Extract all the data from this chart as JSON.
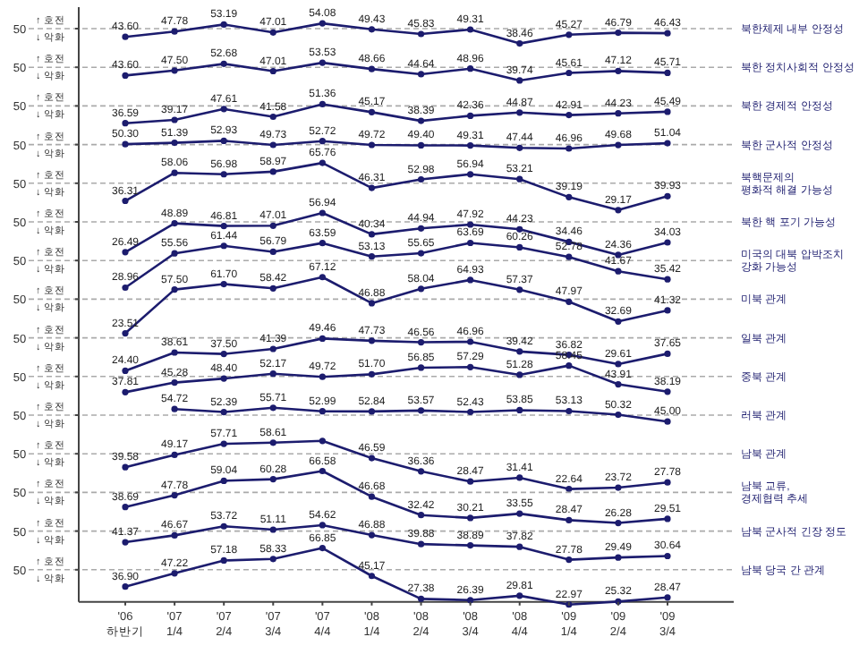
{
  "chart_data": [
    {
      "type": "line",
      "series": [
        {
          "name": "북한체제 내부 안정성",
          "color": "#1c1c6e",
          "values": [
            43.6,
            47.78,
            53.19,
            47.01,
            54.08,
            49.43,
            45.83,
            49.31,
            38.46,
            45.27,
            46.79,
            46.43
          ],
          "value_labels": [
            "43.60",
            "47.78",
            "53.19",
            "47.01",
            "54.08",
            "49.43",
            "45.83",
            "49.31",
            "38.46",
            "45.27",
            "46.79",
            "46.43"
          ]
        }
      ],
      "marker": "circle",
      "ref_lines": [
        {
          "axis": "y",
          "value": 50,
          "label": "50",
          "color": "#aaaaaa",
          "line_style": "dashed"
        }
      ],
      "annotations": [
        "↑ 호전",
        "↓ 악화"
      ]
    },
    {
      "type": "line",
      "series": [
        {
          "name": "북한 정치사회적 안정성",
          "color": "#1c1c6e",
          "values": [
            43.6,
            47.5,
            52.68,
            47.01,
            53.53,
            48.66,
            44.64,
            48.96,
            39.74,
            45.61,
            47.12,
            45.71
          ],
          "value_labels": [
            "43.60",
            "47.50",
            "52.68",
            "47.01",
            "53.53",
            "48.66",
            "44.64",
            "48.96",
            "39.74",
            "45.61",
            "47.12",
            "45.71"
          ]
        }
      ],
      "marker": "circle",
      "ref_lines": [
        {
          "axis": "y",
          "value": 50,
          "label": "50",
          "color": "#aaaaaa",
          "line_style": "dashed"
        }
      ],
      "annotations": [
        "↑ 호전",
        "↓ 악화"
      ]
    },
    {
      "type": "line",
      "series": [
        {
          "name": "북한 경제적 안정성",
          "color": "#1c1c6e",
          "values": [
            36.59,
            39.17,
            47.61,
            41.58,
            51.36,
            45.17,
            38.39,
            42.36,
            44.87,
            42.91,
            44.23,
            45.49
          ],
          "value_labels": [
            "36.59",
            "39.17",
            "47.61",
            "41.58",
            "51.36",
            "45.17",
            "38.39",
            "42.36",
            "44.87",
            "42.91",
            "44.23",
            "45.49"
          ]
        }
      ],
      "marker": "circle",
      "ref_lines": [
        {
          "axis": "y",
          "value": 50,
          "label": "50",
          "color": "#aaaaaa",
          "line_style": "dashed"
        }
      ],
      "annotations": [
        "↑ 호전",
        "↓ 악화"
      ]
    },
    {
      "type": "line",
      "series": [
        {
          "name": "북한 군사적 안정성",
          "color": "#1c1c6e",
          "values": [
            50.3,
            51.39,
            52.93,
            49.73,
            52.72,
            49.72,
            49.4,
            49.31,
            47.44,
            46.96,
            49.68,
            51.04
          ],
          "value_labels": [
            "50.30",
            "51.39",
            "52.93",
            "49.73",
            "52.72",
            "49.72",
            "49.40",
            "49.31",
            "47.44",
            "46.96",
            "49.68",
            "51.04"
          ]
        }
      ],
      "marker": "circle",
      "ref_lines": [
        {
          "axis": "y",
          "value": 50,
          "label": "50",
          "color": "#aaaaaa",
          "line_style": "dashed"
        }
      ],
      "annotations": [
        "↑ 호전",
        "↓ 악화"
      ]
    },
    {
      "type": "line",
      "series": [
        {
          "name": "북핵문제의\n평화적 해결 가능성",
          "color": "#1c1c6e",
          "values": [
            36.31,
            58.06,
            56.98,
            58.97,
            65.76,
            46.31,
            52.98,
            56.94,
            53.21,
            39.19,
            29.17,
            39.93
          ],
          "value_labels": [
            "36.31",
            "58.06",
            "56.98",
            "58.97",
            "65.76",
            "46.31",
            "52.98",
            "56.94",
            "53.21",
            "39.19",
            "29.17",
            "39.93"
          ]
        }
      ],
      "marker": "circle",
      "ref_lines": [
        {
          "axis": "y",
          "value": 50,
          "label": "50",
          "color": "#aaaaaa",
          "line_style": "dashed"
        }
      ],
      "annotations": [
        "↑ 호전",
        "↓ 악화"
      ]
    },
    {
      "type": "line",
      "series": [
        {
          "name": "북한 핵 포기 가능성",
          "color": "#1c1c6e",
          "values": [
            26.49,
            48.89,
            46.81,
            47.01,
            56.94,
            40.34,
            44.94,
            47.92,
            44.23,
            34.46,
            24.36,
            34.03
          ],
          "value_labels": [
            "26.49",
            "48.89",
            "46.81",
            "47.01",
            "56.94",
            "40.34",
            "44.94",
            "47.92",
            "44.23",
            "34.46",
            "24.36",
            "34.03"
          ]
        }
      ],
      "marker": "circle",
      "ref_lines": [
        {
          "axis": "y",
          "value": 50,
          "label": "50",
          "color": "#aaaaaa",
          "line_style": "dashed"
        }
      ],
      "annotations": [
        "↑ 호전",
        "↓ 악화"
      ]
    },
    {
      "type": "line",
      "series": [
        {
          "name": "미국의 대북 압박조치\n강화 가능성",
          "color": "#1c1c6e",
          "values": [
            28.96,
            55.56,
            61.44,
            56.79,
            63.59,
            53.13,
            55.65,
            63.69,
            60.26,
            52.78,
            41.67,
            35.42
          ],
          "value_labels": [
            "28.96",
            "55.56",
            "61.44",
            "56.79",
            "63.59",
            "53.13",
            "55.65",
            "63.69",
            "60.26",
            "52.78",
            "41.67",
            "35.42"
          ]
        }
      ],
      "marker": "circle",
      "ref_lines": [
        {
          "axis": "y",
          "value": 50,
          "label": "50",
          "color": "#aaaaaa",
          "line_style": "dashed"
        }
      ],
      "annotations": [
        "↑ 호전",
        "↓ 악화"
      ]
    },
    {
      "type": "line",
      "series": [
        {
          "name": "미북 관계",
          "color": "#1c1c6e",
          "values": [
            23.51,
            57.5,
            61.7,
            58.42,
            67.12,
            46.88,
            58.04,
            64.93,
            57.37,
            47.97,
            32.69,
            41.32
          ],
          "value_labels": [
            "23.51",
            "57.50",
            "61.70",
            "58.42",
            "67.12",
            "46.88",
            "58.04",
            "64.93",
            "57.37",
            "47.97",
            "32.69",
            "41.32"
          ]
        }
      ],
      "marker": "circle",
      "ref_lines": [
        {
          "axis": "y",
          "value": 50,
          "label": "50",
          "color": "#aaaaaa",
          "line_style": "dashed"
        }
      ],
      "annotations": [
        "↑ 호전",
        "↓ 악화"
      ]
    },
    {
      "type": "line",
      "series": [
        {
          "name": "일북 관계",
          "color": "#1c1c6e",
          "values": [
            24.4,
            38.61,
            37.5,
            41.39,
            49.46,
            47.73,
            46.56,
            46.96,
            39.42,
            36.82,
            29.61,
            37.65
          ],
          "value_labels": [
            "24.40",
            "38.61",
            "37.50",
            "41.39",
            "49.46",
            "47.73",
            "46.56",
            "46.96",
            "39.42",
            "36.82",
            "29.61",
            "37.65"
          ]
        }
      ],
      "marker": "circle",
      "ref_lines": [
        {
          "axis": "y",
          "value": 50,
          "label": "50",
          "color": "#aaaaaa",
          "line_style": "dashed"
        }
      ],
      "annotations": [
        "↑ 호전",
        "↓ 악화"
      ]
    },
    {
      "type": "line",
      "series": [
        {
          "name": "중북 관계",
          "color": "#1c1c6e",
          "values": [
            37.81,
            45.28,
            48.4,
            52.17,
            49.72,
            51.7,
            56.85,
            57.29,
            51.28,
            58.45,
            43.91,
            38.19
          ],
          "value_labels": [
            "37.81",
            "45.28",
            "48.40",
            "52.17",
            "49.72",
            "51.70",
            "56.85",
            "57.29",
            "51.28",
            "58.45",
            "43.91",
            "38.19"
          ]
        }
      ],
      "marker": "circle",
      "ref_lines": [
        {
          "axis": "y",
          "value": 50,
          "label": "50",
          "color": "#aaaaaa",
          "line_style": "dashed"
        }
      ],
      "annotations": [
        "↑ 호전",
        "↓ 악화"
      ]
    },
    {
      "type": "line",
      "series": [
        {
          "name": "러북 관계",
          "color": "#1c1c6e",
          "values": [
            null,
            54.72,
            52.39,
            55.71,
            52.99,
            52.84,
            53.57,
            52.43,
            53.85,
            53.13,
            50.32,
            45.0
          ],
          "value_labels": [
            null,
            "54.72",
            "52.39",
            "55.71",
            "52.99",
            "52.84",
            "53.57",
            "52.43",
            "53.85",
            "53.13",
            "50.32",
            "45.00"
          ]
        }
      ],
      "marker": "circle",
      "ref_lines": [
        {
          "axis": "y",
          "value": 50,
          "label": "50",
          "color": "#aaaaaa",
          "line_style": "dashed"
        }
      ],
      "annotations": [
        "↑ 호전",
        "↓ 악화"
      ]
    },
    {
      "type": "line",
      "series": [
        {
          "name": "남북 관계",
          "color": "#1c1c6e",
          "values": [
            39.58,
            49.17,
            57.71,
            58.61,
            60,
            46.59,
            36.36,
            28.47,
            31.41,
            22.64,
            23.72,
            27.78
          ],
          "value_labels": [
            "39.58",
            "49.17",
            "57.71",
            "58.61",
            null,
            "46.59",
            "36.36",
            "28.47",
            "31.41",
            "22.64",
            "23.72",
            "27.78"
          ]
        }
      ],
      "marker": "circle",
      "ref_lines": [
        {
          "axis": "y",
          "value": 50,
          "label": "50",
          "color": "#aaaaaa",
          "line_style": "dashed"
        }
      ],
      "annotations": [
        "↑ 호전",
        "↓ 악화"
      ]
    },
    {
      "type": "line",
      "series": [
        {
          "name": "남북 교류,\n경제협력 추세",
          "color": "#1c1c6e",
          "values": [
            38.69,
            47.78,
            59.04,
            60.28,
            66.58,
            46.68,
            32.42,
            30.21,
            33.55,
            28.47,
            26.28,
            29.51
          ],
          "value_labels": [
            "38.69",
            "47.78",
            "59.04",
            "60.28",
            "66.58",
            "46.68",
            "32.42",
            "30.21",
            "33.55",
            "28.47",
            "26.28",
            "29.51"
          ]
        }
      ],
      "marker": "circle",
      "ref_lines": [
        {
          "axis": "y",
          "value": 50,
          "label": "50",
          "color": "#aaaaaa",
          "line_style": "dashed"
        }
      ],
      "annotations": [
        "↑ 호전",
        "↓ 악화"
      ]
    },
    {
      "type": "line",
      "series": [
        {
          "name": "남북 군사적 긴장 정도",
          "color": "#1c1c6e",
          "values": [
            41.37,
            46.67,
            53.72,
            51.11,
            54.62,
            46.88,
            39.88,
            38.89,
            37.82,
            27.78,
            29.49,
            30.64
          ],
          "value_labels": [
            "41.37",
            "46.67",
            "53.72",
            "51.11",
            "54.62",
            "46.88",
            "39.88",
            "38.89",
            "37.82",
            "27.78",
            "29.49",
            "30.64"
          ]
        }
      ],
      "marker": "circle",
      "ref_lines": [
        {
          "axis": "y",
          "value": 50,
          "label": "50",
          "color": "#aaaaaa",
          "line_style": "dashed"
        }
      ],
      "annotations": [
        "↑ 호전",
        "↓ 악화"
      ]
    },
    {
      "type": "line",
      "categories": [
        "'06\n하반기",
        "'07\n1/4",
        "'07\n2/4",
        "'07\n3/4",
        "'07\n4/4",
        "'08\n1/4",
        "'08\n2/4",
        "'08\n3/4",
        "'08\n4/4",
        "'09\n1/4",
        "'09\n2/4",
        "'09\n3/4"
      ],
      "series": [
        {
          "name": "남북 당국 간 관계",
          "color": "#1c1c6e",
          "values": [
            36.9,
            47.22,
            57.18,
            58.33,
            66.85,
            45.17,
            27.38,
            26.39,
            29.81,
            22.97,
            25.32,
            28.47
          ],
          "value_labels": [
            "36.90",
            "47.22",
            "57.18",
            "58.33",
            "66.85",
            "45.17",
            "27.38",
            "26.39",
            "29.81",
            "22.97",
            "25.32",
            "28.47"
          ]
        }
      ],
      "marker": "circle",
      "ref_lines": [
        {
          "axis": "y",
          "value": 50,
          "label": "50",
          "color": "#aaaaaa",
          "line_style": "dashed"
        }
      ],
      "annotations": [
        "↑ 호전",
        "↓ 악화"
      ]
    }
  ]
}
